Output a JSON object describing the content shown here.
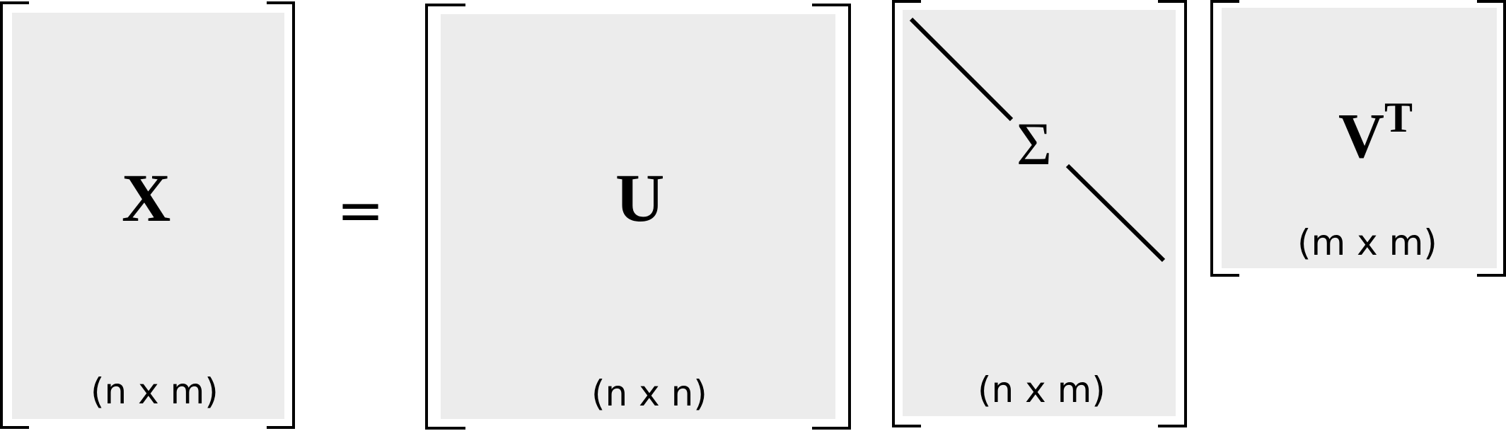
{
  "equation": {
    "equals": "=",
    "matrices": [
      {
        "id": "X",
        "symbol": "X",
        "superscript": "",
        "dims": "(n x m)"
      },
      {
        "id": "U",
        "symbol": "U",
        "superscript": "",
        "dims": "(n x n)"
      },
      {
        "id": "Sigma",
        "symbol": "Σ",
        "superscript": "",
        "dims": "(n x m)"
      },
      {
        "id": "VT",
        "symbol": "V",
        "superscript": "T",
        "dims": "(m x m)"
      }
    ]
  },
  "colors": {
    "fill": "#ececec",
    "ink": "#000000",
    "background": "#ffffff"
  }
}
